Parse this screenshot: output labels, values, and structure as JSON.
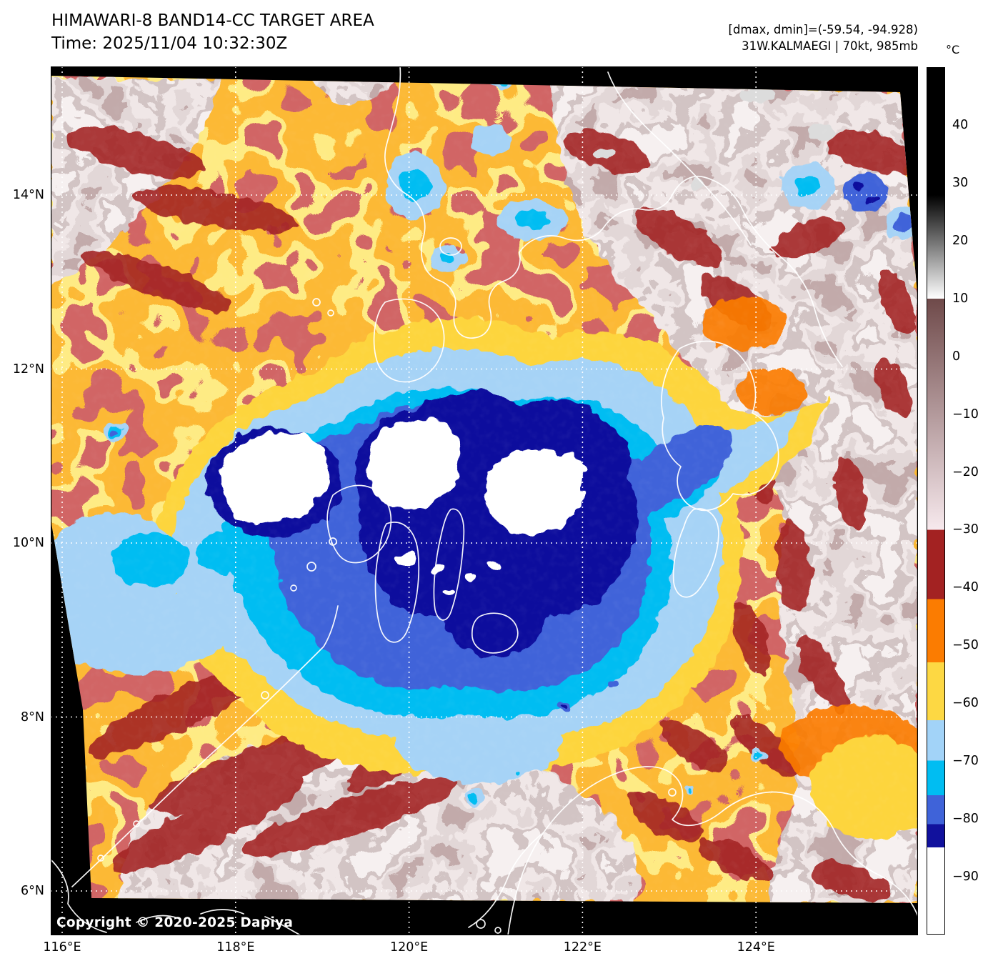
{
  "header": {
    "title": "HIMAWARI-8 BAND14-CC TARGET AREA",
    "time_line": "Time: 2025/11/04 10:32:30Z",
    "stats_line": "[dmax, dmin]=(-59.54, -94.928)",
    "storm_line": "31W.KALMAEGI | 70kt, 985mb"
  },
  "map": {
    "copyright": "Copyright © 2020-2025 Dapiya",
    "description": "Himawari-8 infrared brightness-temperature image of Typhoon 31W (Kalmaegi) over the central Philippines; three white overshooting cloud tops near 10-11N 119-121E surrounded by navy/blue cold cloud shield, warm orange/red environment and pale mauve land/low cloud",
    "palette": {
      "white_core": "#ffffff",
      "navy": "#11119d",
      "royal_blue": "#3f63d9",
      "cyan": "#00bdf2",
      "light_blue": "#a6d3f6",
      "yellow": "#fdd53c",
      "orange": "#f97c0a",
      "dark_red": "#a32222",
      "mauve": "#c7b3b3",
      "coastline": "#ffffff",
      "background": "#000000"
    }
  },
  "colorbar": {
    "unit": "°C",
    "range": {
      "min": -100,
      "max": 50
    },
    "ticks": [
      {
        "value": 40,
        "label": "40"
      },
      {
        "value": 30,
        "label": "30"
      },
      {
        "value": 20,
        "label": "20"
      },
      {
        "value": 10,
        "label": "10"
      },
      {
        "value": 0,
        "label": "0"
      },
      {
        "value": -10,
        "label": "−10"
      },
      {
        "value": -20,
        "label": "−20"
      },
      {
        "value": -30,
        "label": "−30"
      },
      {
        "value": -40,
        "label": "−40"
      },
      {
        "value": -50,
        "label": "−50"
      },
      {
        "value": -60,
        "label": "−60"
      },
      {
        "value": -70,
        "label": "−70"
      },
      {
        "value": -80,
        "label": "−80"
      },
      {
        "value": -90,
        "label": "−90"
      }
    ],
    "segments": [
      {
        "from": 50,
        "to": 28,
        "type": "solid",
        "color": "#000000"
      },
      {
        "from": 28,
        "to": 10,
        "type": "ramp",
        "colorStart": "#000000",
        "colorEnd": "#ffffff"
      },
      {
        "from": 10,
        "to": -30,
        "type": "ramp",
        "colorStart": "#6f4a4a",
        "colorEnd": "#f7e9ed"
      },
      {
        "from": -30,
        "to": -42,
        "type": "solid",
        "color": "#a32222"
      },
      {
        "from": -42,
        "to": -53,
        "type": "solid",
        "color": "#fb7c01"
      },
      {
        "from": -53,
        "to": -63,
        "type": "solid",
        "color": "#fdd843"
      },
      {
        "from": -63,
        "to": -70,
        "type": "solid",
        "color": "#a2d3f8"
      },
      {
        "from": -70,
        "to": -76,
        "type": "solid",
        "color": "#00bdf2"
      },
      {
        "from": -76,
        "to": -81,
        "type": "solid",
        "color": "#3f63d9"
      },
      {
        "from": -81,
        "to": -85,
        "type": "solid",
        "color": "#11119d"
      },
      {
        "from": -85,
        "to": -100,
        "type": "solid",
        "color": "#ffffff"
      }
    ]
  },
  "x_axis": {
    "ticks": [
      {
        "deg": 116,
        "label": "116°E"
      },
      {
        "deg": 118,
        "label": "118°E"
      },
      {
        "deg": 120,
        "label": "120°E"
      },
      {
        "deg": 122,
        "label": "122°E"
      },
      {
        "deg": 124,
        "label": "124°E"
      }
    ]
  },
  "y_axis": {
    "ticks": [
      {
        "deg": 14,
        "label": "14°N"
      },
      {
        "deg": 12,
        "label": "12°N"
      },
      {
        "deg": 10,
        "label": "10°N"
      },
      {
        "deg": 8,
        "label": "8°N"
      },
      {
        "deg": 6,
        "label": "6°N"
      }
    ]
  }
}
